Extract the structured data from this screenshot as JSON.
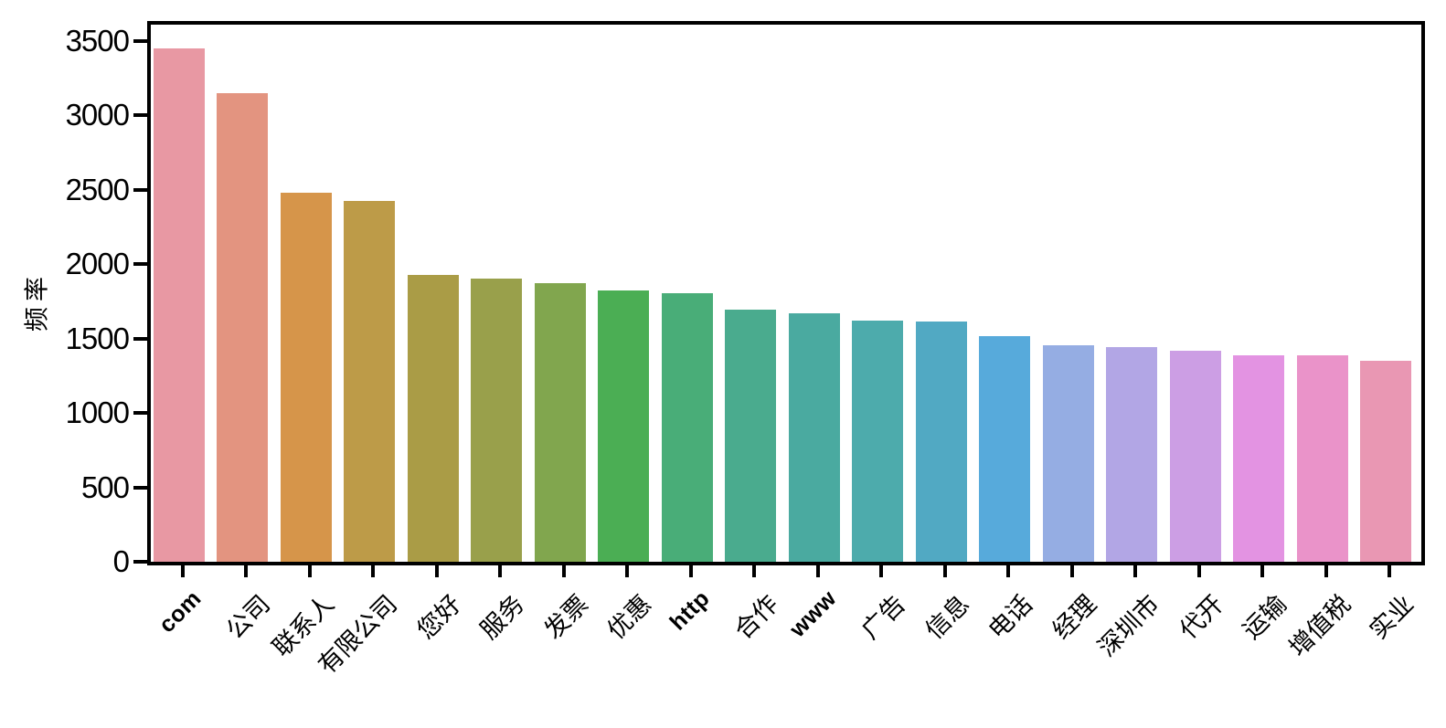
{
  "chart_data": {
    "type": "bar",
    "title": "",
    "xlabel": "",
    "ylabel": "频率",
    "categories": [
      "com",
      "公司",
      "联系人",
      "有限公司",
      "您好",
      "服务",
      "发票",
      "优惠",
      "http",
      "合作",
      "www",
      "广告",
      "信息",
      "电话",
      "经理",
      "深圳市",
      "代开",
      "运输",
      "增值税",
      "实业"
    ],
    "values": [
      3450,
      3150,
      2480,
      2425,
      1925,
      1905,
      1870,
      1825,
      1805,
      1695,
      1670,
      1620,
      1615,
      1515,
      1455,
      1440,
      1420,
      1390,
      1385,
      1350
    ],
    "bar_colors": [
      "#e898a3",
      "#e39480",
      "#d6954a",
      "#bd9b48",
      "#aa9c46",
      "#99a04b",
      "#81a64e",
      "#4bae54",
      "#49ad78",
      "#4aab8e",
      "#4aaaa0",
      "#4dabac",
      "#51a9c3",
      "#57aadb",
      "#95ade3",
      "#b2a6e5",
      "#cc9ee4",
      "#e393e2",
      "#ea93c9",
      "#e997b3"
    ],
    "y_ticks": [
      0,
      500,
      1000,
      1500,
      2000,
      2500,
      3000,
      3500
    ],
    "ylim": [
      0,
      3610
    ],
    "grid": false,
    "legend_position": "none",
    "x_tick_rotation_deg": 45,
    "axis_color": "#000000",
    "background_color": "#ffffff"
  }
}
